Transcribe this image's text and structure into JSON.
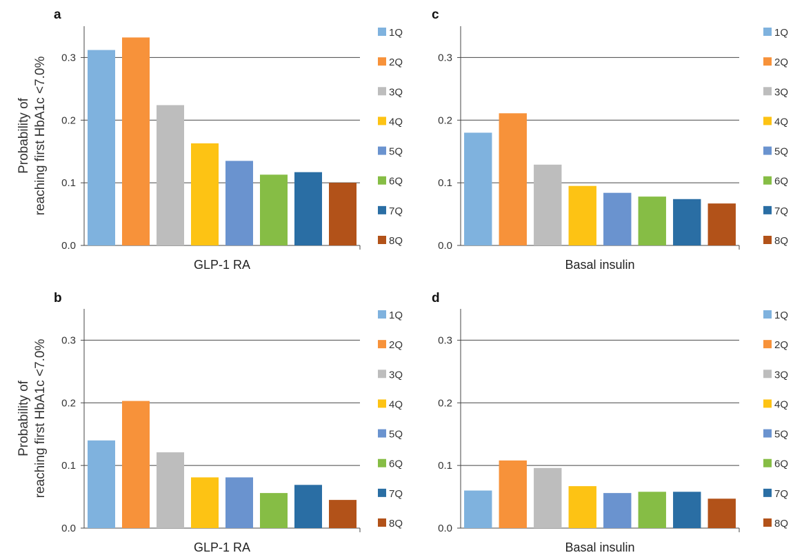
{
  "y_axis_label_lines": [
    "Probability of",
    "reaching first HbA1c <7.0%"
  ],
  "chart_data": [
    {
      "panel": "a",
      "type": "bar",
      "xlabel": "GLP-1 RA",
      "ylabel": "Probability of reaching first HbA1c <7.0%",
      "ylim": [
        0,
        0.35
      ],
      "yticks": [
        "0.0",
        "0.1",
        "0.2",
        "0.3"
      ],
      "grid": true,
      "legend": "right",
      "categories": [
        "1Q",
        "2Q",
        "3Q",
        "4Q",
        "5Q",
        "6Q",
        "7Q",
        "8Q"
      ],
      "values": [
        0.312,
        0.332,
        0.224,
        0.163,
        0.135,
        0.113,
        0.117,
        0.1
      ]
    },
    {
      "panel": "c",
      "type": "bar",
      "xlabel": "Basal insulin",
      "ylabel": "",
      "ylim": [
        0,
        0.35
      ],
      "yticks": [
        "0.0",
        "0.1",
        "0.2",
        "0.3"
      ],
      "grid": true,
      "legend": "right",
      "categories": [
        "1Q",
        "2Q",
        "3Q",
        "4Q",
        "5Q",
        "6Q",
        "7Q",
        "8Q"
      ],
      "values": [
        0.18,
        0.211,
        0.129,
        0.095,
        0.084,
        0.078,
        0.074,
        0.067
      ]
    },
    {
      "panel": "b",
      "type": "bar",
      "xlabel": "GLP-1 RA",
      "ylabel": "Probability of reaching first HbA1c <7.0%",
      "ylim": [
        0,
        0.35
      ],
      "yticks": [
        "0.0",
        "0.1",
        "0.2",
        "0.3"
      ],
      "grid": true,
      "legend": "right",
      "categories": [
        "1Q",
        "2Q",
        "3Q",
        "4Q",
        "5Q",
        "6Q",
        "7Q",
        "8Q"
      ],
      "values": [
        0.14,
        0.203,
        0.121,
        0.081,
        0.081,
        0.056,
        0.069,
        0.045
      ]
    },
    {
      "panel": "d",
      "type": "bar",
      "xlabel": "Basal insulin",
      "ylabel": "",
      "ylim": [
        0,
        0.35
      ],
      "yticks": [
        "0.0",
        "0.1",
        "0.2",
        "0.3"
      ],
      "grid": true,
      "legend": "right",
      "categories": [
        "1Q",
        "2Q",
        "3Q",
        "4Q",
        "5Q",
        "6Q",
        "7Q",
        "8Q"
      ],
      "values": [
        0.06,
        0.108,
        0.096,
        0.067,
        0.056,
        0.058,
        0.058,
        0.047
      ]
    }
  ],
  "colors": [
    "#7fb2de",
    "#f7923a",
    "#bdbdbd",
    "#fdc314",
    "#6a93cf",
    "#86bd45",
    "#2a6ea4",
    "#b25219"
  ]
}
